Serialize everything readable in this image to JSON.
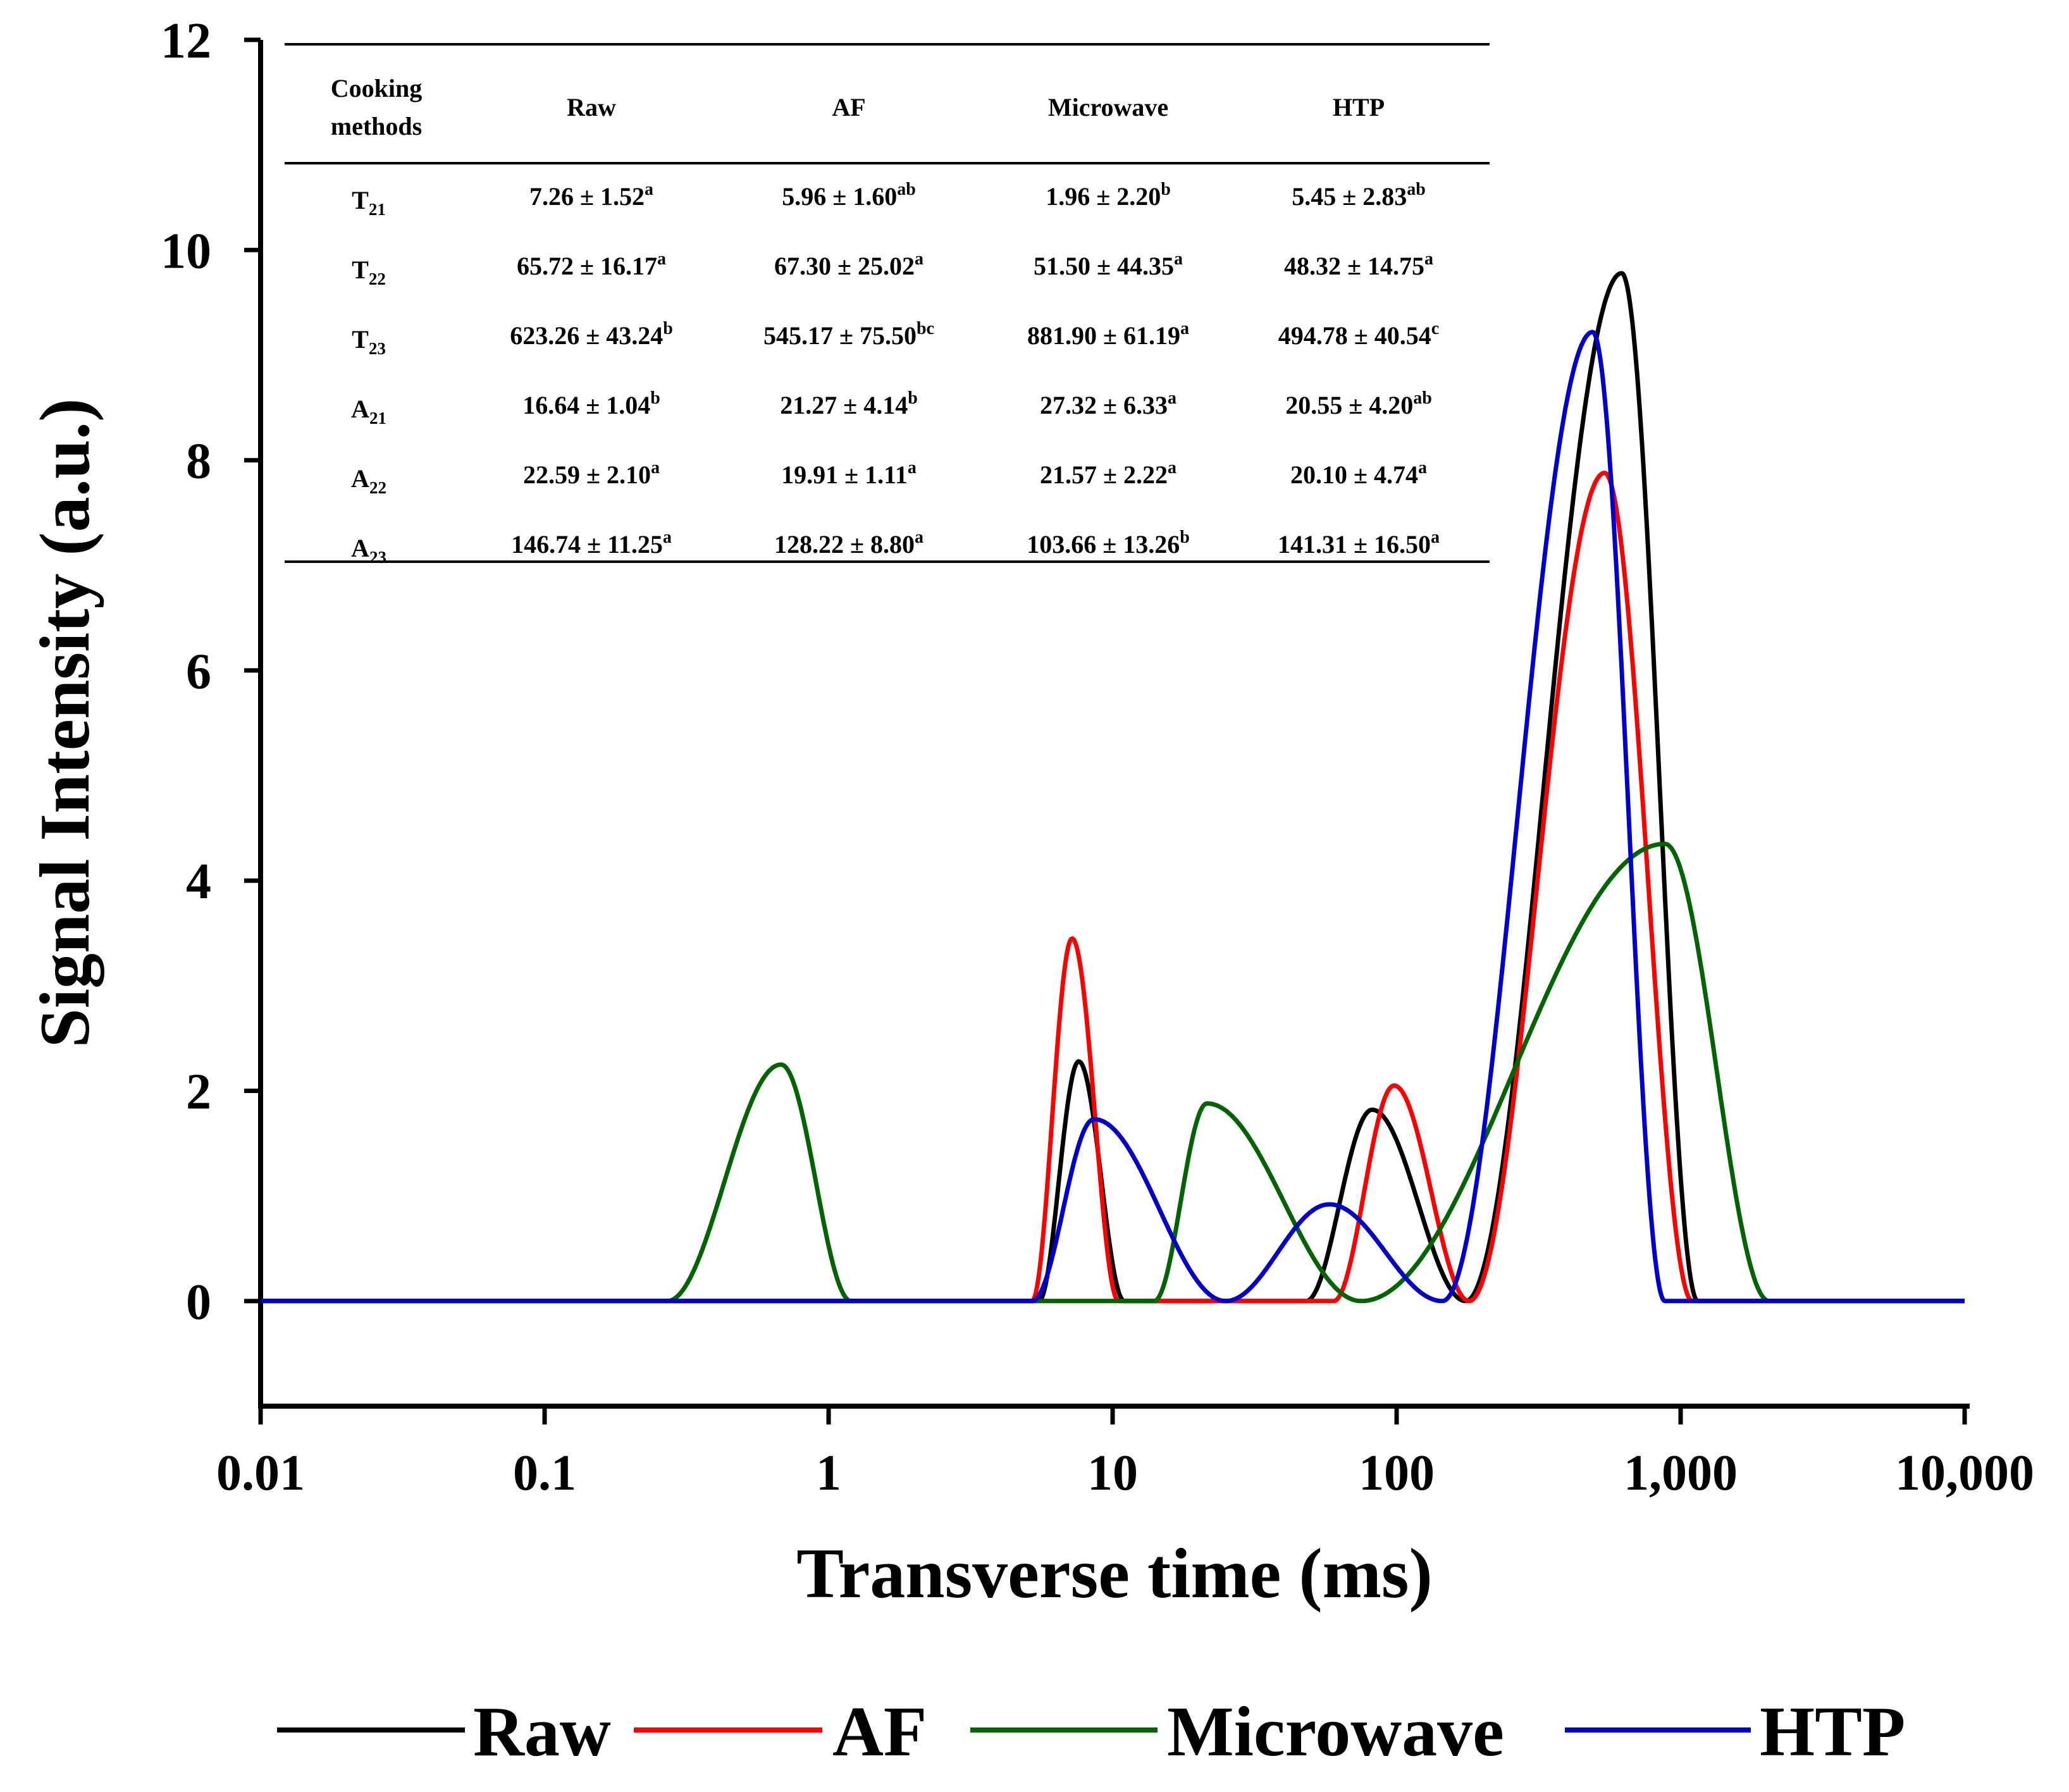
{
  "chart_data": {
    "type": "line",
    "xscale": "log",
    "xlabel": "Transverse time (ms)",
    "ylabel": "Signal Intensity (a.u.)",
    "xlim": [
      0.01,
      10000
    ],
    "ylim": [
      -1,
      12
    ],
    "x_ticks": [
      {
        "value": 0.01,
        "label": "0.01"
      },
      {
        "value": 0.1,
        "label": "0.1"
      },
      {
        "value": 1,
        "label": "1"
      },
      {
        "value": 10,
        "label": "10"
      },
      {
        "value": 100,
        "label": "100"
      },
      {
        "value": 1000,
        "label": "1,000"
      },
      {
        "value": 10000,
        "label": "10,000"
      }
    ],
    "y_ticks": [
      {
        "value": 0,
        "label": "0"
      },
      {
        "value": 2,
        "label": "2"
      },
      {
        "value": 4,
        "label": "4"
      },
      {
        "value": 6,
        "label": "6"
      },
      {
        "value": 8,
        "label": "8"
      },
      {
        "value": 10,
        "label": "10"
      },
      {
        "value": 12,
        "label": "12"
      }
    ],
    "legend_position": "bottom",
    "series": [
      {
        "name": "Raw",
        "color": "#000000",
        "peaks": [
          {
            "start": 5.5,
            "center": 7.6,
            "end": 11,
            "height": 2.28
          },
          {
            "start": 48,
            "center": 82,
            "end": 175,
            "height": 1.82
          },
          {
            "start": 175,
            "center": 620,
            "end": 1150,
            "height": 9.78
          }
        ]
      },
      {
        "name": "AF",
        "color": "#ff0000",
        "peaks": [
          {
            "start": 5.2,
            "center": 7.2,
            "end": 10.5,
            "height": 3.45
          },
          {
            "start": 60,
            "center": 98,
            "end": 180,
            "height": 2.05
          },
          {
            "start": 180,
            "center": 540,
            "end": 1100,
            "height": 7.88
          }
        ]
      },
      {
        "name": "Microwave",
        "color": "#006400",
        "peaks": [
          {
            "start": 0.27,
            "center": 0.68,
            "end": 1.2,
            "height": 2.25
          },
          {
            "start": 14,
            "center": 21.5,
            "end": 75,
            "height": 1.88
          },
          {
            "start": 75,
            "center": 880,
            "end": 2050,
            "height": 4.35
          }
        ]
      },
      {
        "name": "HTP",
        "color": "#0000cc",
        "peaks": [
          {
            "start": 5.2,
            "center": 8.6,
            "end": 25,
            "height": 1.73
          },
          {
            "start": 25,
            "center": 58,
            "end": 145,
            "height": 0.92
          },
          {
            "start": 145,
            "center": 490,
            "end": 880,
            "height": 9.22
          }
        ]
      }
    ],
    "inset_table": {
      "header": {
        "line1": "Cooking",
        "line2": "methods",
        "columns": [
          "Raw",
          "AF",
          "Microwave",
          "HTP"
        ]
      },
      "rows": [
        {
          "param": "T",
          "sub": "21",
          "cells": [
            {
              "v": "7.26 ± 1.52",
              "s": "a"
            },
            {
              "v": "5.96 ± 1.60",
              "s": "ab"
            },
            {
              "v": "1.96 ± 2.20",
              "s": "b"
            },
            {
              "v": "5.45 ± 2.83",
              "s": "ab"
            }
          ]
        },
        {
          "param": "T",
          "sub": "22",
          "cells": [
            {
              "v": "65.72 ± 16.17",
              "s": "a"
            },
            {
              "v": "67.30 ± 25.02",
              "s": "a"
            },
            {
              "v": "51.50 ± 44.35",
              "s": "a"
            },
            {
              "v": "48.32 ± 14.75",
              "s": "a"
            }
          ]
        },
        {
          "param": "T",
          "sub": "23",
          "cells": [
            {
              "v": "623.26 ± 43.24",
              "s": "b"
            },
            {
              "v": "545.17 ± 75.50",
              "s": "bc"
            },
            {
              "v": "881.90 ± 61.19",
              "s": "a"
            },
            {
              "v": "494.78 ± 40.54",
              "s": "c"
            }
          ]
        },
        {
          "param": "A",
          "sub": "21",
          "cells": [
            {
              "v": "16.64 ± 1.04",
              "s": "b"
            },
            {
              "v": "21.27 ± 4.14",
              "s": "b"
            },
            {
              "v": "27.32 ± 6.33",
              "s": "a"
            },
            {
              "v": "20.55 ± 4.20",
              "s": "ab"
            }
          ]
        },
        {
          "param": "A",
          "sub": "22",
          "cells": [
            {
              "v": "22.59 ± 2.10",
              "s": "a"
            },
            {
              "v": "19.91 ± 1.11",
              "s": "a"
            },
            {
              "v": "21.57 ± 2.22",
              "s": "a"
            },
            {
              "v": "20.10 ± 4.74",
              "s": "a"
            }
          ]
        },
        {
          "param": "A",
          "sub": "23",
          "cells": [
            {
              "v": "146.74 ± 11.25",
              "s": "a"
            },
            {
              "v": "128.22 ± 8.80",
              "s": "a"
            },
            {
              "v": "103.66 ± 13.26",
              "s": "b"
            },
            {
              "v": "141.31 ± 16.50",
              "s": "a"
            }
          ]
        }
      ]
    }
  }
}
